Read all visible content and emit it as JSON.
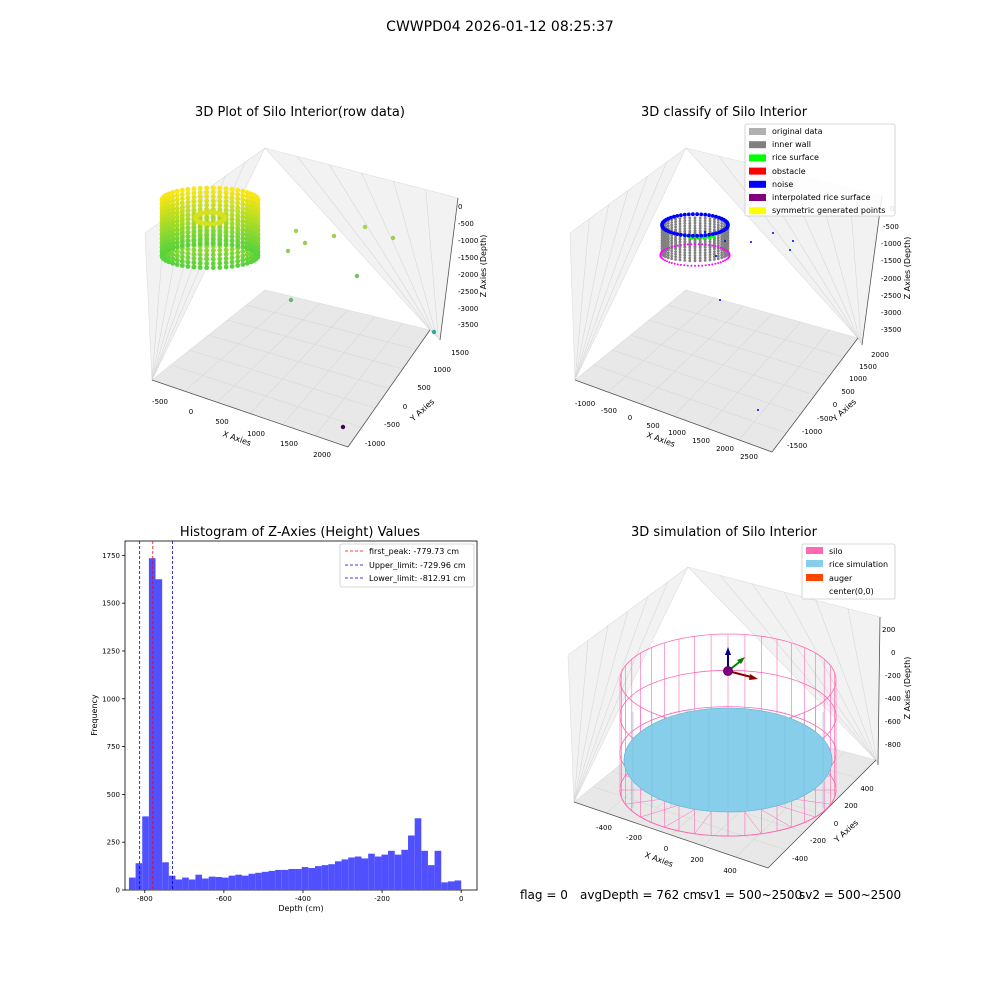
{
  "figure": {
    "suptitle": "CWWPD04 2026-01-12 08:25:37"
  },
  "footer": {
    "flag": "flag = 0",
    "avg_depth": "avgDepth = 762 cm",
    "sv1": "sv1 = 500~2500",
    "sv2": "sv2 = 500~2500"
  },
  "colors": {
    "hist_bar": "#5050ff",
    "peak_line": "#ff0000",
    "limit_line": "#0000cc",
    "silo": "#ff69b4",
    "rice": "#87ceeb",
    "auger": "#ff4500",
    "noise": "#0000ff",
    "rice_surface": "#00ff00",
    "inner_wall": "#808080"
  },
  "chart_data": [
    {
      "type": "scatter",
      "id": "raw",
      "title": "3D Plot of Silo Interior(row data)",
      "xlabel": "X Axies",
      "ylabel": "Y Axies",
      "zlabel": "Z Axies (Depth)",
      "x_ticks": [
        "-500",
        "0",
        "500",
        "1000",
        "1500",
        "2000"
      ],
      "y_ticks": [
        "-1000",
        "-500",
        "0",
        "500",
        "1000",
        "1500"
      ],
      "z_ticks": [
        "0",
        "-500",
        "-1000",
        "-1500",
        "-2000",
        "-2500",
        "-3000",
        "-3500"
      ],
      "grid": true,
      "ring": {
        "cx": 210,
        "cy": 200,
        "rx": 48,
        "ry": 20,
        "depth": 60
      },
      "outliers": [
        {
          "x": 296,
          "y": 231,
          "z": -700
        },
        {
          "x": 334,
          "y": 236,
          "z": -800
        },
        {
          "x": 365,
          "y": 227,
          "z": -600
        },
        {
          "x": 393,
          "y": 238,
          "z": -900
        },
        {
          "x": 305,
          "y": 243,
          "z": -1000
        },
        {
          "x": 288,
          "y": 251,
          "z": -1100
        },
        {
          "x": 357,
          "y": 276,
          "z": -1800
        },
        {
          "x": 291,
          "y": 300,
          "z": -2300
        },
        {
          "x": 434,
          "y": 332,
          "z": -3500
        },
        {
          "x": 343,
          "y": 427,
          "z": -3700
        }
      ]
    },
    {
      "type": "scatter",
      "id": "classify",
      "title": "3D classify of Silo Interior",
      "xlabel": "X Axies",
      "ylabel": "Y Axies",
      "zlabel": "Z Axies (Depth)",
      "x_ticks": [
        "-1000",
        "-500",
        "0",
        "500",
        "1000",
        "1500",
        "2000",
        "2500"
      ],
      "y_ticks": [
        "-1500",
        "-1000",
        "-500",
        "0",
        "500",
        "1000",
        "1500",
        "2000"
      ],
      "z_ticks": [
        "0",
        "-500",
        "-1000",
        "-1500",
        "-2000",
        "-2500",
        "-3000",
        "-3500"
      ],
      "grid": true,
      "legend": [
        {
          "label": "original data",
          "color": "#b0b0b0"
        },
        {
          "label": "inner wall",
          "color": "#808080"
        },
        {
          "label": "rice surface",
          "color": "#00ff00"
        },
        {
          "label": "obstacle",
          "color": "#ff0000"
        },
        {
          "label": "noise",
          "color": "#0000ff"
        },
        {
          "label": "interpolated rice surface",
          "color": "#800080"
        },
        {
          "label": "symmetric generated points",
          "color": "#ffff00"
        }
      ],
      "legend_loc": "upper right"
    },
    {
      "type": "bar",
      "id": "histogram",
      "title": "Histogram of Z-Axies (Height) Values",
      "xlabel": "Depth (cm)",
      "ylabel": "Frequency",
      "xlim": [
        -850,
        40
      ],
      "ylim": [
        0,
        1825
      ],
      "x_ticks": [
        -800,
        -600,
        -400,
        -200,
        0
      ],
      "y_ticks": [
        0,
        250,
        500,
        750,
        1000,
        1250,
        1500,
        1750
      ],
      "bins": [
        {
          "x0": -840,
          "x1": -826,
          "v": 65
        },
        {
          "x0": -826,
          "x1": -812,
          "v": 140
        },
        {
          "x0": -812,
          "x1": -798,
          "v": 385
        },
        {
          "x0": -798,
          "x1": -784,
          "v": 1735
        },
        {
          "x0": -784,
          "x1": -770,
          "v": 1625
        },
        {
          "x0": -770,
          "x1": -756,
          "v": 145
        },
        {
          "x0": -756,
          "x1": -742,
          "v": 75
        },
        {
          "x0": -742,
          "x1": -728,
          "v": 55
        },
        {
          "x0": -728,
          "x1": -714,
          "v": 65
        },
        {
          "x0": -714,
          "x1": -700,
          "v": 55
        },
        {
          "x0": -700,
          "x1": -686,
          "v": 80
        },
        {
          "x0": -686,
          "x1": -672,
          "v": 60
        },
        {
          "x0": -672,
          "x1": -658,
          "v": 70
        },
        {
          "x0": -658,
          "x1": -644,
          "v": 68
        },
        {
          "x0": -644,
          "x1": -630,
          "v": 65
        },
        {
          "x0": -630,
          "x1": -616,
          "v": 75
        },
        {
          "x0": -616,
          "x1": -602,
          "v": 80
        },
        {
          "x0": -602,
          "x1": -588,
          "v": 75
        },
        {
          "x0": -588,
          "x1": -574,
          "v": 85
        },
        {
          "x0": -574,
          "x1": -560,
          "v": 90
        },
        {
          "x0": -560,
          "x1": -546,
          "v": 95
        },
        {
          "x0": -546,
          "x1": -532,
          "v": 100
        },
        {
          "x0": -532,
          "x1": -518,
          "v": 105
        },
        {
          "x0": -518,
          "x1": -504,
          "v": 105
        },
        {
          "x0": -504,
          "x1": -490,
          "v": 110
        },
        {
          "x0": -490,
          "x1": -476,
          "v": 110
        },
        {
          "x0": -476,
          "x1": -462,
          "v": 120
        },
        {
          "x0": -462,
          "x1": -448,
          "v": 115
        },
        {
          "x0": -448,
          "x1": -434,
          "v": 125
        },
        {
          "x0": -434,
          "x1": -420,
          "v": 130
        },
        {
          "x0": -420,
          "x1": -406,
          "v": 135
        },
        {
          "x0": -406,
          "x1": -392,
          "v": 150
        },
        {
          "x0": -392,
          "x1": -378,
          "v": 160
        },
        {
          "x0": -378,
          "x1": -364,
          "v": 170
        },
        {
          "x0": -364,
          "x1": -350,
          "v": 175
        },
        {
          "x0": -350,
          "x1": -336,
          "v": 165
        },
        {
          "x0": -336,
          "x1": -322,
          "v": 190
        },
        {
          "x0": -322,
          "x1": -308,
          "v": 175
        },
        {
          "x0": -308,
          "x1": -294,
          "v": 185
        },
        {
          "x0": -294,
          "x1": -280,
          "v": 205
        },
        {
          "x0": -280,
          "x1": -266,
          "v": 185
        },
        {
          "x0": -266,
          "x1": -252,
          "v": 210
        },
        {
          "x0": -252,
          "x1": -238,
          "v": 285
        },
        {
          "x0": -238,
          "x1": -224,
          "v": 375
        },
        {
          "x0": -224,
          "x1": -210,
          "v": 205
        },
        {
          "x0": -210,
          "x1": -196,
          "v": 130
        },
        {
          "x0": -196,
          "x1": -182,
          "v": 205
        },
        {
          "x0": -182,
          "x1": -168,
          "v": 40
        },
        {
          "x0": -168,
          "x1": -154,
          "v": 45
        },
        {
          "x0": -154,
          "x1": -140,
          "v": 50
        }
      ],
      "vlines": [
        {
          "label": "first_peak: -779.73 cm",
          "x": -779.73,
          "color": "#ff0000"
        },
        {
          "label": "Upper_limit: -729.96 cm",
          "x": -729.96,
          "color": "#0000cc"
        },
        {
          "label": "Lower_limit: -812.91 cm",
          "x": -812.91,
          "color": "#0000cc"
        }
      ],
      "legend_loc": "upper right"
    },
    {
      "type": "scatter",
      "id": "simulation",
      "title": "3D simulation of Silo Interior",
      "xlabel": "X Axies",
      "ylabel": "Y Axies",
      "zlabel": "Z Axies (Depth)",
      "x_ticks": [
        "-400",
        "-200",
        "0",
        "200",
        "400"
      ],
      "y_ticks": [
        "-400",
        "-200",
        "0",
        "200",
        "400"
      ],
      "z_ticks": [
        "200",
        "0",
        "-200",
        "-400",
        "-600",
        "-800"
      ],
      "grid": true,
      "legend": [
        {
          "label": "silo",
          "color": "#ff69b4"
        },
        {
          "label": "rice simulation",
          "color": "#87ceeb"
        },
        {
          "label": "auger",
          "color": "#ff4500"
        },
        {
          "label": "center(0,0)",
          "color": ""
        }
      ],
      "legend_loc": "upper right"
    }
  ]
}
